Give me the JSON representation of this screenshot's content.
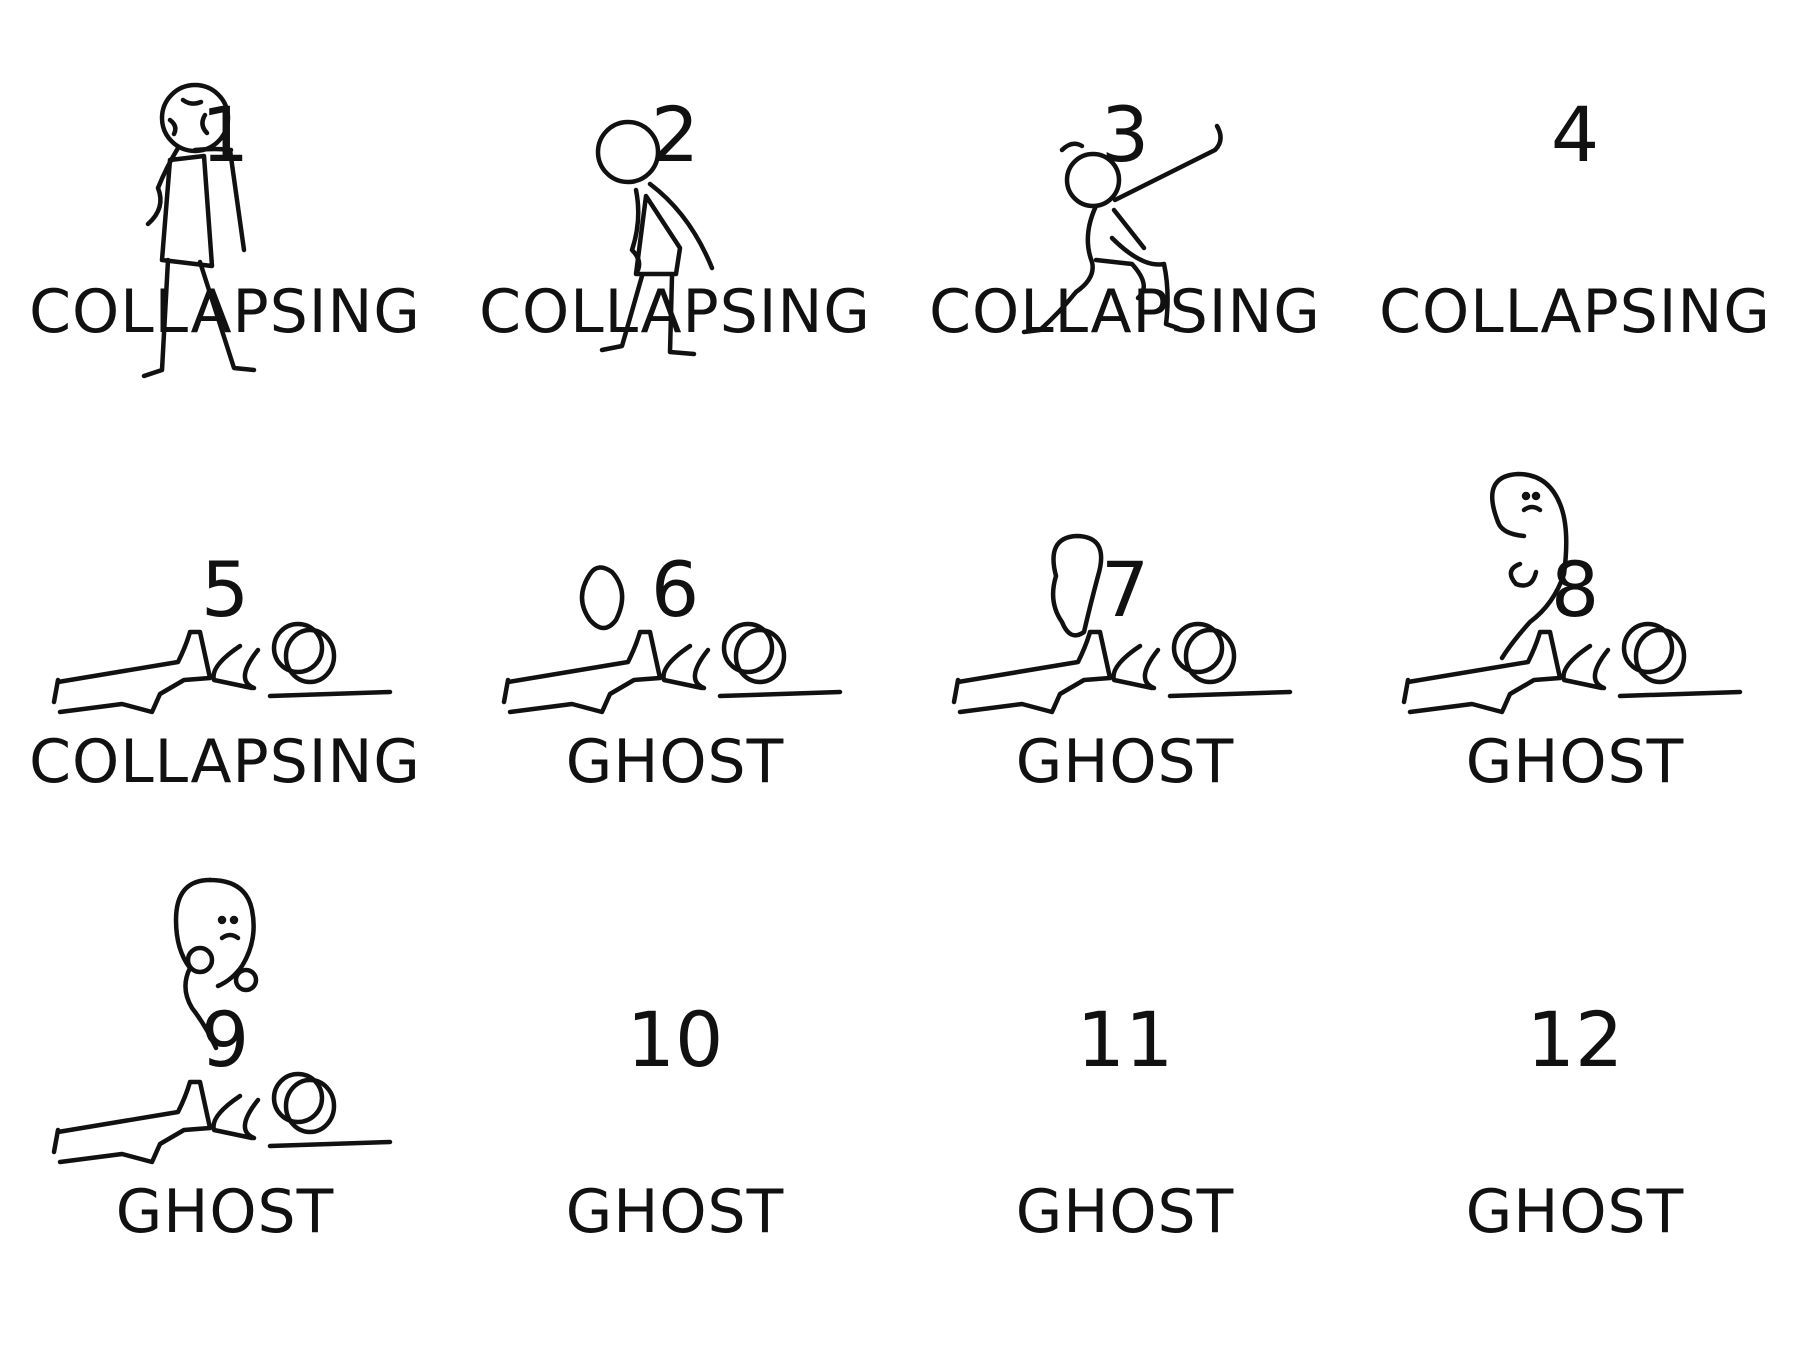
{
  "sheet": {
    "frames": [
      {
        "number": "1",
        "label": "COLLAPSING"
      },
      {
        "number": "2",
        "label": "COLLAPSING"
      },
      {
        "number": "3",
        "label": "COLLAPSING"
      },
      {
        "number": "4",
        "label": "COLLAPSING"
      },
      {
        "number": "5",
        "label": "COLLAPSING"
      },
      {
        "number": "6",
        "label": "GHOST"
      },
      {
        "number": "7",
        "label": "GHOST"
      },
      {
        "number": "8",
        "label": "GHOST"
      },
      {
        "number": "9",
        "label": "GHOST"
      },
      {
        "number": "10",
        "label": "GHOST"
      },
      {
        "number": "11",
        "label": "GHOST"
      },
      {
        "number": "12",
        "label": "GHOST"
      }
    ]
  }
}
